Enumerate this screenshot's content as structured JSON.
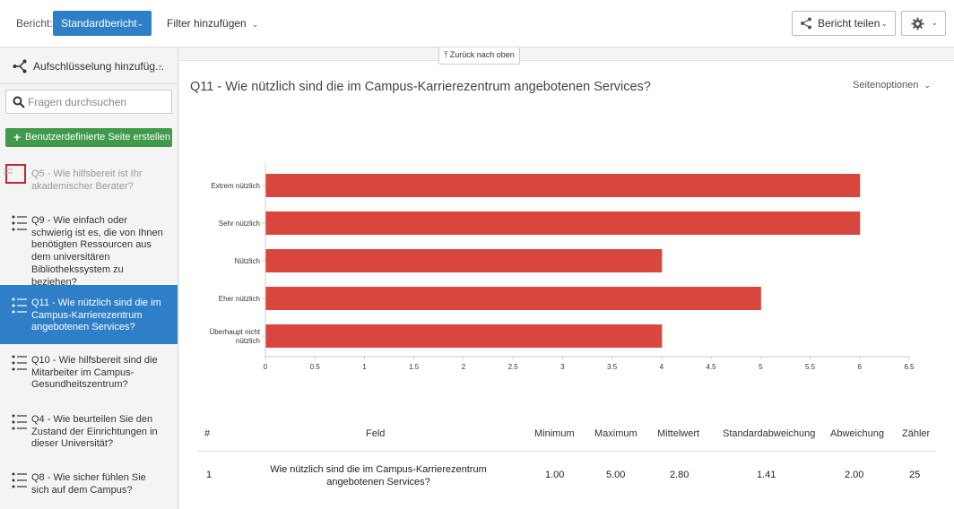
{
  "topbar": {
    "report_label": "Bericht:",
    "report_button": "Standardbericht",
    "filter_label": "Filter hinzufügen",
    "share_button": "Bericht teilen",
    "icons": {
      "share": "share-icon",
      "gear": "gear-icon",
      "chevron": "chevron-down-icon"
    },
    "accent_color": "#2f7fc8"
  },
  "sidebar": {
    "breakdown_label": "Aufschlüsselung hinzufüg...",
    "search_placeholder": "Fragen durchsuchen",
    "create_button": "Benutzerdefinierte Seite erstellen",
    "create_color": "#3f9a4a",
    "items": [
      {
        "label": "Q5 - Wie hilfsbereit ist Ihr akademischer Berater?",
        "state": "disabled"
      },
      {
        "label": "Q9 - Wie einfach oder schwierig ist es, die von Ihnen benötigten Ressourcen aus dem universitären Bibliothekssystem zu beziehen?",
        "state": "normal"
      },
      {
        "label": "Q11 - Wie nützlich sind die im Campus-Karrierezentrum angebotenen Services?",
        "state": "active"
      },
      {
        "label": "Q10 - Wie hilfsbereit sind die Mitarbeiter im Campus-Gesundheitszentrum?",
        "state": "normal"
      },
      {
        "label": "Q4 - Wie beurteilen Sie den Zustand der Einrichtungen in dieser Universität?",
        "state": "normal"
      },
      {
        "label": "Q8 - Wie sicher fühlen Sie sich auf dem Campus?",
        "state": "normal"
      }
    ]
  },
  "main": {
    "back_to_top": "⤒ Zurück nach oben",
    "question_title": "Q11 - Wie nützlich sind die im Campus-Karrierezentrum angebotenen Services?",
    "page_options": "Seitenoptionen"
  },
  "chart_data": {
    "type": "bar",
    "orientation": "horizontal",
    "categories": [
      "Extrem nützlich",
      "Sehr nützlich",
      "Nützlich",
      "Eher nützlich",
      "Überhaupt nicht nützlich"
    ],
    "values": [
      6,
      6,
      4,
      5,
      4
    ],
    "xlim": [
      0,
      6.5
    ],
    "xticks": [
      "0",
      "0.5",
      "1",
      "1.5",
      "2",
      "2.5",
      "3",
      "3.5",
      "4",
      "4.5",
      "5",
      "5.5",
      "6",
      "6.5"
    ],
    "bar_color": "#d9463e",
    "grid": false
  },
  "stats_table": {
    "headers": [
      "#",
      "Feld",
      "Minimum",
      "Maximum",
      "Mittelwert",
      "Standardabweichung",
      "Abweichung",
      "Zähler"
    ],
    "rows": [
      [
        "1",
        "Wie nützlich sind die im Campus-Karrierezentrum angebotenen Services?",
        "1.00",
        "5.00",
        "2.80",
        "1.41",
        "2.00",
        "25"
      ]
    ]
  }
}
